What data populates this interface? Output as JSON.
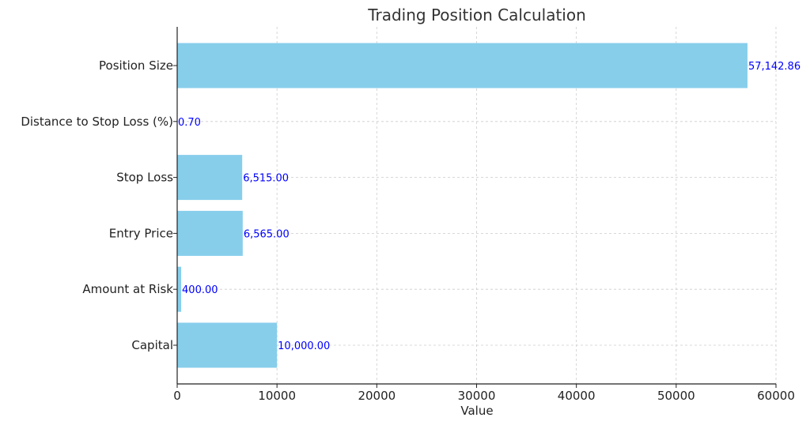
{
  "colors": {
    "bar": "#87ceeb",
    "data_label": "#0000ff",
    "grid": "#cccccc",
    "axis": "#222222",
    "title": "#333333"
  },
  "chart_data": {
    "type": "bar",
    "orientation": "horizontal",
    "title": "Trading Position Calculation",
    "xlabel": "Value",
    "ylabel": "",
    "xlim": [
      0,
      60000
    ],
    "x_ticks": [
      0,
      10000,
      20000,
      30000,
      40000,
      50000,
      60000
    ],
    "x_tick_labels": [
      "0",
      "10000",
      "20000",
      "30000",
      "40000",
      "50000",
      "60000"
    ],
    "grid": true,
    "categories": [
      "Capital",
      "Amount at Risk",
      "Entry Price",
      "Stop Loss",
      "Distance to Stop Loss (%)",
      "Position Size"
    ],
    "values": [
      10000,
      400,
      6565,
      6515,
      0.7,
      57142.86
    ],
    "data_labels": [
      "10,000.00",
      "400.00",
      "6,565.00",
      "6,515.00",
      "0.70",
      "57,142.86"
    ]
  }
}
